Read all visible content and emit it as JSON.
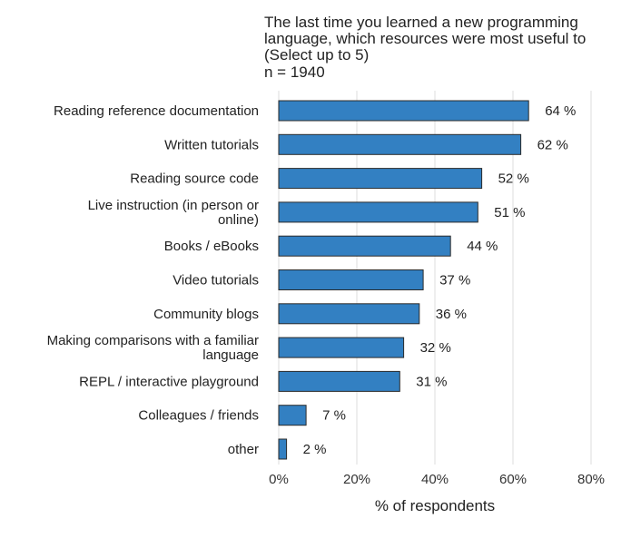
{
  "chart_data": {
    "type": "bar",
    "orientation": "horizontal",
    "title_lines": [
      "The last time you learned a new programming",
      "language, which resources were most useful to",
      "(Select up to 5)"
    ],
    "n_label": "n =  1940",
    "categories": [
      [
        "Reading reference documentation"
      ],
      [
        "Written tutorials"
      ],
      [
        "Reading source code"
      ],
      [
        "Live instruction (in person or",
        "online)"
      ],
      [
        "Books / eBooks"
      ],
      [
        "Video tutorials"
      ],
      [
        "Community blogs"
      ],
      [
        "Making comparisons with a familiar",
        "language"
      ],
      [
        "REPL / interactive playground"
      ],
      [
        "Colleagues / friends"
      ],
      [
        "other"
      ]
    ],
    "values": [
      64,
      62,
      52,
      51,
      44,
      37,
      36,
      32,
      31,
      7,
      2
    ],
    "value_labels": [
      "64 %",
      "62 %",
      "52 %",
      "51 %",
      "44 %",
      "37 %",
      "36 %",
      "32 %",
      "31 %",
      "7 %",
      "2 %"
    ],
    "xlim": [
      0,
      80
    ],
    "x_ticks": [
      0,
      20,
      40,
      60,
      80
    ],
    "x_tick_labels": [
      "0%",
      "20%",
      "40%",
      "60%",
      "80%"
    ],
    "xlabel": "% of respondents",
    "ylabel": "",
    "grid": true,
    "colors": {
      "bar_fill": "#3380c2",
      "bar_stroke": "#2b2b2b",
      "grid": "#e6e6e6"
    }
  }
}
